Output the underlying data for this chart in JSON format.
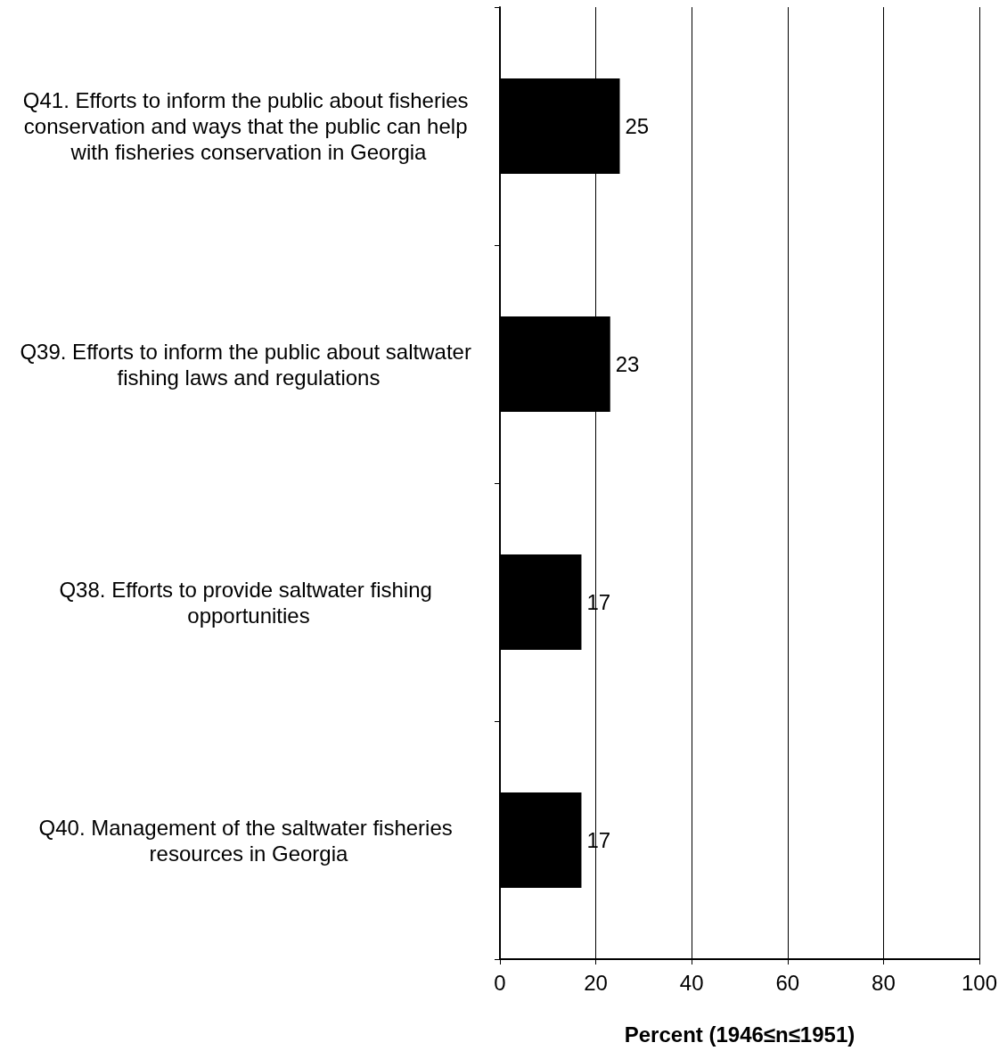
{
  "chart_data": {
    "type": "bar",
    "orientation": "horizontal",
    "xlabel": "Percent (1946≤n≤1951)",
    "categories": [
      "Q41. Efforts to inform the public about fisheries conservation and ways that the public can help with fisheries conservation in Georgia",
      "Q39. Efforts to inform the public about saltwater fishing laws and regulations",
      "Q38. Efforts to provide saltwater fishing opportunities",
      "Q40. Management of the saltwater fisheries resources in Georgia"
    ],
    "values": [
      25,
      23,
      17,
      17
    ],
    "color": "#000000",
    "data_labels": true,
    "xlim": [
      0,
      100
    ],
    "xticks": [
      0,
      20,
      40,
      60,
      80,
      100
    ],
    "grid": "x"
  }
}
